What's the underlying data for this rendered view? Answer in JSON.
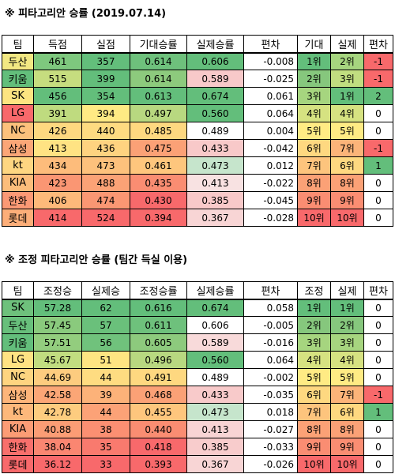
{
  "colors": {
    "green": "#63be7b",
    "light_green": "#c6e5cc",
    "pink": "#f8c9c9",
    "red": "#f8696b",
    "white": "#ffffff"
  },
  "table1": {
    "title": "※ 피타고리안 승률 (2019.07.14)",
    "headers": [
      "팀",
      "득점",
      "실점",
      "기대승률",
      "실제승률",
      "편차",
      "기대",
      "실제",
      "편차"
    ],
    "rows": [
      {
        "team": "두산",
        "c1": "461",
        "c2": "357",
        "exp": "0.614",
        "act": "0.606",
        "dev": "-0.008",
        "er": "1위",
        "ar": "2위",
        "rd": "-1",
        "bg": [
          "#f2e883",
          "#7ec87e",
          "#63be7b",
          "#6ec17c",
          "#63be7b",
          "#ffffff",
          "#63be7b",
          "#a6d57f",
          "#f8696b"
        ]
      },
      {
        "team": "키움",
        "c1": "515",
        "c2": "399",
        "exp": "0.614",
        "act": "0.589",
        "dev": "-0.025",
        "er": "2위",
        "ar": "3위",
        "rd": "-1",
        "bg": [
          "#63be7b",
          "#c6dd7f",
          "#63be7b",
          "#8dca7d",
          "#f8c9c9",
          "#ffffff",
          "#86c77d",
          "#c1dd80",
          "#f8696b"
        ]
      },
      {
        "team": "SK",
        "c1": "456",
        "c2": "354",
        "exp": "0.613",
        "act": "0.674",
        "dev": "0.061",
        "er": "3위",
        "ar": "1위",
        "rd": "2",
        "bg": [
          "#fde481",
          "#63be7b",
          "#63be7b",
          "#63be7b",
          "#63be7b",
          "#ffffff",
          "#a6d57f",
          "#63be7b",
          "#63be7b"
        ]
      },
      {
        "team": "LG",
        "c1": "391",
        "c2": "394",
        "exp": "0.497",
        "act": "0.560",
        "dev": "0.064",
        "er": "4위",
        "ar": "4위",
        "rd": "0",
        "bg": [
          "#f8696b",
          "#bfdb7f",
          "#ffea84",
          "#b8d880",
          "#63be7b",
          "#ffffff",
          "#d6e281",
          "#d6e281",
          "#ffffff"
        ]
      },
      {
        "team": "NC",
        "c1": "426",
        "c2": "440",
        "exp": "0.485",
        "act": "0.489",
        "dev": "0.004",
        "er": "5위",
        "ar": "5위",
        "rd": "0",
        "bg": [
          "#fcc17c",
          "#fed880",
          "#fedb81",
          "#fed880",
          "#ffffff",
          "#ffffff",
          "#ffeb84",
          "#ffeb84",
          "#ffffff"
        ]
      },
      {
        "team": "삼성",
        "c1": "413",
        "c2": "436",
        "exp": "0.475",
        "act": "0.433",
        "dev": "-0.042",
        "er": "6위",
        "ar": "7위",
        "rd": "-1",
        "bg": [
          "#fba677",
          "#ffe383",
          "#fed380",
          "#fba176",
          "#f8c9c9",
          "#ffffff",
          "#fed880",
          "#fcb479",
          "#f8696b"
        ]
      },
      {
        "team": "kt",
        "c1": "434",
        "c2": "473",
        "exp": "0.461",
        "act": "0.473",
        "dev": "0.012",
        "er": "7위",
        "ar": "6위",
        "rd": "1",
        "bg": [
          "#fed681",
          "#fdbc7b",
          "#fdc17c",
          "#fec67d",
          "#c6e5cc",
          "#ffffff",
          "#fdc47d",
          "#fed880",
          "#63be7b"
        ]
      },
      {
        "team": "KIA",
        "c1": "423",
        "c2": "488",
        "exp": "0.435",
        "act": "0.413",
        "dev": "-0.022",
        "er": "8위",
        "ar": "8위",
        "rd": "0",
        "bg": [
          "#fcbd7b",
          "#fa9673",
          "#fba276",
          "#fa8d72",
          "#f8e2e2",
          "#ffffff",
          "#fba176",
          "#fba176",
          "#ffffff"
        ]
      },
      {
        "team": "한화",
        "c1": "406",
        "c2": "474",
        "exp": "0.430",
        "act": "0.385",
        "dev": "-0.045",
        "er": "9위",
        "ar": "9위",
        "rd": "0",
        "bg": [
          "#fb9975",
          "#fdb97a",
          "#fa9773",
          "#f8696b",
          "#f8c9c9",
          "#ffffff",
          "#fa8d72",
          "#fa8d72",
          "#ffffff"
        ]
      },
      {
        "team": "롯데",
        "c1": "414",
        "c2": "524",
        "exp": "0.394",
        "act": "0.367",
        "dev": "-0.028",
        "er": "10위",
        "ar": "10위",
        "rd": "0",
        "bg": [
          "#fcae79",
          "#f8696b",
          "#f8696b",
          "#f8696b",
          "#f8d5d5",
          "#ffffff",
          "#f8696b",
          "#f8696b",
          "#ffffff"
        ]
      }
    ]
  },
  "table2": {
    "title": "※ 조정 피타고리안 승률 (팀간 득실 이용)",
    "headers": [
      "팀",
      "조정승",
      "실제승",
      "조정승률",
      "실제승률",
      "편차",
      "조정",
      "실제",
      "편차"
    ],
    "rows": [
      {
        "team": "SK",
        "c1": "57.28",
        "c2": "62",
        "exp": "0.616",
        "act": "0.674",
        "dev": "0.058",
        "er": "1위",
        "ar": "1위",
        "rd": "0",
        "bg": [
          "#6ec17c",
          "#63be7b",
          "#63be7b",
          "#63be7b",
          "#63be7b",
          "#ffffff",
          "#63be7b",
          "#63be7b",
          "#ffffff"
        ]
      },
      {
        "team": "두산",
        "c1": "57.45",
        "c2": "57",
        "exp": "0.611",
        "act": "0.606",
        "dev": "-0.005",
        "er": "2위",
        "ar": "2위",
        "rd": "0",
        "bg": [
          "#68bf7b",
          "#8aca7d",
          "#6ac07b",
          "#6ec17c",
          "#ffffff",
          "#ffffff",
          "#86c77d",
          "#86c77d",
          "#ffffff"
        ]
      },
      {
        "team": "키움",
        "c1": "57.51",
        "c2": "56",
        "exp": "0.605",
        "act": "0.589",
        "dev": "-0.016",
        "er": "3위",
        "ar": "3위",
        "rd": "0",
        "bg": [
          "#63be7b",
          "#93cd7e",
          "#70c27c",
          "#8dca7d",
          "#f8dada",
          "#ffffff",
          "#a6d57f",
          "#a6d57f",
          "#ffffff"
        ]
      },
      {
        "team": "LG",
        "c1": "45.67",
        "c2": "51",
        "exp": "0.496",
        "act": "0.560",
        "dev": "0.064",
        "er": "4위",
        "ar": "4위",
        "rd": "0",
        "bg": [
          "#ffe383",
          "#c1dd80",
          "#fee582",
          "#b8d880",
          "#63be7b",
          "#ffffff",
          "#d6e281",
          "#d6e281",
          "#ffffff"
        ]
      },
      {
        "team": "NC",
        "c1": "44.69",
        "c2": "44",
        "exp": "0.491",
        "act": "0.489",
        "dev": "-0.002",
        "er": "5위",
        "ar": "5위",
        "rd": "0",
        "bg": [
          "#fed480",
          "#fdcc7f",
          "#fedc81",
          "#fed880",
          "#ffffff",
          "#ffffff",
          "#ffeb84",
          "#ffeb84",
          "#ffffff"
        ]
      },
      {
        "team": "삼성",
        "c1": "42.58",
        "c2": "39",
        "exp": "0.468",
        "act": "0.433",
        "dev": "-0.035",
        "er": "6위",
        "ar": "7위",
        "rd": "-1",
        "bg": [
          "#fdb57a",
          "#fba676",
          "#fcb279",
          "#fba176",
          "#f8caca",
          "#ffffff",
          "#fed880",
          "#fcb479",
          "#f8696b"
        ]
      },
      {
        "team": "kt",
        "c1": "42.78",
        "c2": "44",
        "exp": "0.455",
        "act": "0.473",
        "dev": "0.018",
        "er": "7위",
        "ar": "6위",
        "rd": "1",
        "bg": [
          "#fdb87b",
          "#fdcc7f",
          "#fca277",
          "#fec67d",
          "#c6e5cc",
          "#ffffff",
          "#fdc47d",
          "#fed880",
          "#63be7b"
        ]
      },
      {
        "team": "KIA",
        "c1": "40.88",
        "c2": "38",
        "exp": "0.440",
        "act": "0.413",
        "dev": "-0.027",
        "er": "8위",
        "ar": "8위",
        "rd": "0",
        "bg": [
          "#fb9c75",
          "#fb9d75",
          "#fb8f72",
          "#fa8d72",
          "#f8d4d4",
          "#ffffff",
          "#fba176",
          "#fba176",
          "#ffffff"
        ]
      },
      {
        "team": "한화",
        "c1": "38.04",
        "c2": "35",
        "exp": "0.418",
        "act": "0.385",
        "dev": "-0.033",
        "er": "9위",
        "ar": "9위",
        "rd": "0",
        "bg": [
          "#f8706c",
          "#fa8671",
          "#f97a6e",
          "#f8696b",
          "#f8cccc",
          "#ffffff",
          "#fa8d72",
          "#fa8d72",
          "#ffffff"
        ]
      },
      {
        "team": "롯데",
        "c1": "36.12",
        "c2": "33",
        "exp": "0.393",
        "act": "0.367",
        "dev": "-0.026",
        "er": "10위",
        "ar": "10위",
        "rd": "0",
        "bg": [
          "#f8696b",
          "#f8696b",
          "#f8696b",
          "#f8696b",
          "#f8d5d5",
          "#ffffff",
          "#f8696b",
          "#f8696b",
          "#ffffff"
        ]
      }
    ]
  }
}
